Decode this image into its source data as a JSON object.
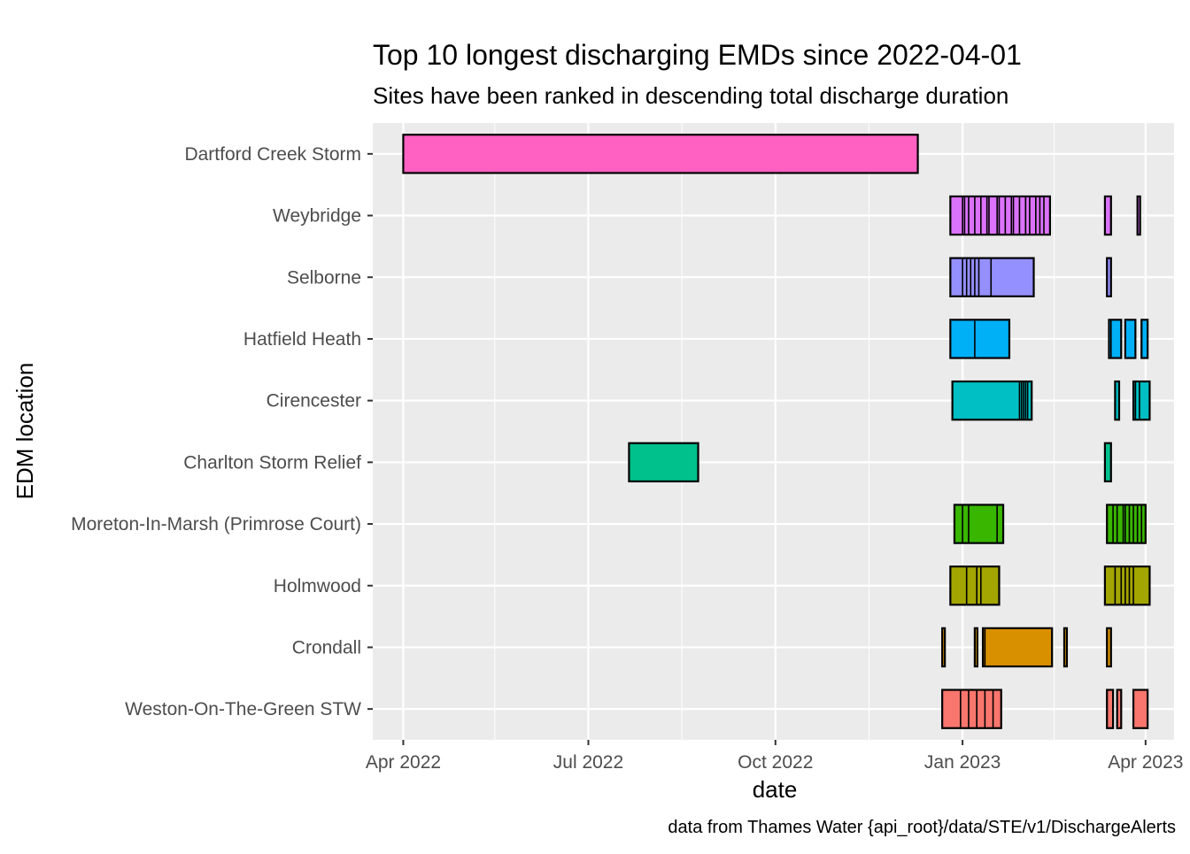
{
  "chart_data": {
    "type": "bar",
    "subtype": "timeline",
    "title": "Top 10 longest discharging EMDs since 2022-04-01",
    "subtitle": "Sites have been ranked in descending total discharge duration",
    "xlabel": "date",
    "ylabel": "EDM location",
    "caption": "data from Thames Water {api_root}/data/STE/v1/DischargeAlerts",
    "xlim": [
      "2022-03-17",
      "2023-04-15"
    ],
    "x_ticks": [
      {
        "date": "2022-04-01",
        "label": "Apr 2022"
      },
      {
        "date": "2022-07-01",
        "label": "Jul 2022"
      },
      {
        "date": "2022-10-01",
        "label": "Oct 2022"
      },
      {
        "date": "2023-01-01",
        "label": "Jan 2023"
      },
      {
        "date": "2023-04-01",
        "label": "Apr 2023"
      }
    ],
    "x_minor_ticks": [
      "2022-05-16",
      "2022-08-16",
      "2022-11-16",
      "2023-02-15"
    ],
    "grid": true,
    "legend": "none",
    "series": [
      {
        "name": "Dartford Creek Storm",
        "color": "#FF61C3",
        "intervals": [
          [
            "2022-04-01",
            "2022-12-10"
          ]
        ],
        "dividers": []
      },
      {
        "name": "Weybridge",
        "color": "#DB72FB",
        "intervals": [
          [
            "2022-12-26",
            "2023-02-13"
          ],
          [
            "2023-03-12",
            "2023-03-15"
          ],
          [
            "2023-03-28",
            "2023-03-29"
          ]
        ],
        "dividers": [
          "2023-01-01",
          "2023-01-02",
          "2023-01-04",
          "2023-01-07",
          "2023-01-10",
          "2023-01-13",
          "2023-01-14",
          "2023-01-18",
          "2023-01-19",
          "2023-01-22",
          "2023-01-25",
          "2023-01-26",
          "2023-01-29",
          "2023-02-01",
          "2023-02-03",
          "2023-02-06",
          "2023-02-08",
          "2023-02-10"
        ]
      },
      {
        "name": "Selborne",
        "color": "#9590FF",
        "intervals": [
          [
            "2022-12-26",
            "2023-02-05"
          ],
          [
            "2023-03-13",
            "2023-03-15"
          ]
        ],
        "dividers": [
          "2023-01-01",
          "2023-01-03",
          "2023-01-05",
          "2023-01-07",
          "2023-01-09",
          "2023-01-15"
        ]
      },
      {
        "name": "Hatfield Heath",
        "color": "#00B0F6",
        "intervals": [
          [
            "2022-12-26",
            "2023-01-24"
          ],
          [
            "2023-03-14",
            "2023-03-20"
          ],
          [
            "2023-03-22",
            "2023-03-27"
          ],
          [
            "2023-03-30",
            "2023-04-02"
          ]
        ],
        "dividers": [
          "2023-01-07",
          "2023-03-15"
        ]
      },
      {
        "name": "Cirencester",
        "color": "#00BFC4",
        "intervals": [
          [
            "2022-12-27",
            "2023-02-04"
          ],
          [
            "2023-03-17",
            "2023-03-19"
          ],
          [
            "2023-03-26",
            "2023-04-03"
          ]
        ],
        "dividers": [
          "2023-01-29",
          "2023-01-30",
          "2023-01-31",
          "2023-02-01",
          "2023-02-02",
          "2023-03-27",
          "2023-03-29"
        ]
      },
      {
        "name": "Charlton Storm Relief",
        "color": "#00C08B",
        "intervals": [
          [
            "2022-07-21",
            "2022-08-24"
          ],
          [
            "2023-03-12",
            "2023-03-15"
          ]
        ],
        "dividers": []
      },
      {
        "name": "Moreton-In-Marsh (Primrose Court)",
        "color": "#39B600",
        "intervals": [
          [
            "2022-12-28",
            "2023-01-21"
          ],
          [
            "2023-03-13",
            "2023-04-01"
          ]
        ],
        "dividers": [
          "2023-01-01",
          "2023-01-04",
          "2023-01-18",
          "2023-03-16",
          "2023-03-18",
          "2023-03-21",
          "2023-03-22",
          "2023-03-24",
          "2023-03-26",
          "2023-03-28",
          "2023-03-30"
        ]
      },
      {
        "name": "Holmwood",
        "color": "#A3A500",
        "intervals": [
          [
            "2022-12-26",
            "2023-01-19"
          ],
          [
            "2023-03-12",
            "2023-04-03"
          ]
        ],
        "dividers": [
          "2023-01-03",
          "2023-01-08",
          "2023-01-10",
          "2023-03-17",
          "2023-03-20",
          "2023-03-22",
          "2023-03-24",
          "2023-03-26"
        ]
      },
      {
        "name": "Crondall",
        "color": "#D89000",
        "intervals": [
          [
            "2022-12-22",
            "2022-12-23"
          ],
          [
            "2023-01-07",
            "2023-01-08"
          ],
          [
            "2023-01-11",
            "2023-02-14"
          ],
          [
            "2023-02-20",
            "2023-02-21"
          ],
          [
            "2023-03-13",
            "2023-03-15"
          ]
        ],
        "dividers": [
          "2023-01-12"
        ]
      },
      {
        "name": "Weston-On-The-Green STW",
        "color": "#F8766D",
        "intervals": [
          [
            "2022-12-22",
            "2023-01-20"
          ],
          [
            "2023-03-13",
            "2023-03-16"
          ],
          [
            "2023-03-18",
            "2023-03-20"
          ],
          [
            "2023-03-26",
            "2023-04-02"
          ]
        ],
        "dividers": [
          "2022-12-31",
          "2023-01-04",
          "2023-01-08",
          "2023-01-12",
          "2023-01-16"
        ]
      }
    ]
  }
}
